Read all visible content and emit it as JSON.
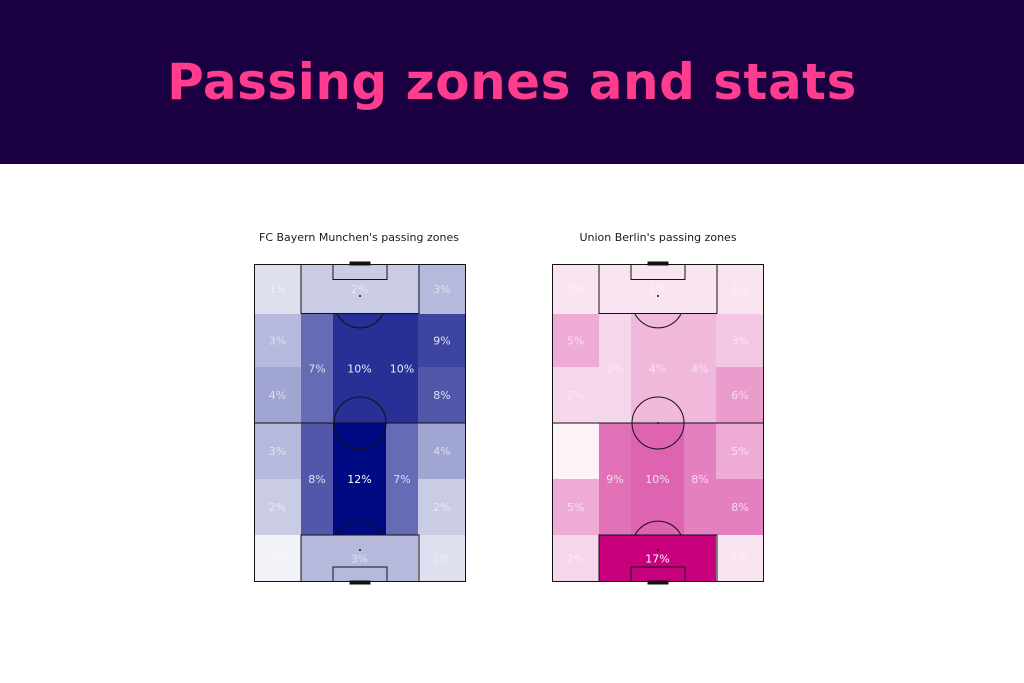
{
  "header": {
    "title": "Passing zones and stats",
    "background": "#1a0040",
    "title_color": "#ff3c8e"
  },
  "chart_data": [
    {
      "type": "heatmap",
      "title": "FC Bayern Munchen's passing zones",
      "color": "#000a82",
      "unit": "%",
      "columns": 5,
      "rows": 6,
      "max_value": 12,
      "zones": [
        {
          "row": 0,
          "col": 0,
          "colspan": 1,
          "rowspan": 1,
          "value": 1
        },
        {
          "row": 0,
          "col": 1,
          "colspan": 3,
          "rowspan": 1,
          "value": 2
        },
        {
          "row": 0,
          "col": 4,
          "colspan": 1,
          "rowspan": 1,
          "value": 3
        },
        {
          "row": 1,
          "col": 0,
          "colspan": 1,
          "rowspan": 1,
          "value": 3
        },
        {
          "row": 1,
          "col": 1,
          "colspan": 1,
          "rowspan": 2,
          "value": 7
        },
        {
          "row": 1,
          "col": 2,
          "colspan": 1,
          "rowspan": 2,
          "value": 10
        },
        {
          "row": 1,
          "col": 3,
          "colspan": 1,
          "rowspan": 2,
          "value": 10
        },
        {
          "row": 1,
          "col": 4,
          "colspan": 1,
          "rowspan": 1,
          "value": 9
        },
        {
          "row": 2,
          "col": 0,
          "colspan": 1,
          "rowspan": 1,
          "value": 4
        },
        {
          "row": 2,
          "col": 4,
          "colspan": 1,
          "rowspan": 1,
          "value": 8
        },
        {
          "row": 3,
          "col": 0,
          "colspan": 1,
          "rowspan": 1,
          "value": 3
        },
        {
          "row": 3,
          "col": 1,
          "colspan": 1,
          "rowspan": 2,
          "value": 8
        },
        {
          "row": 3,
          "col": 2,
          "colspan": 1,
          "rowspan": 2,
          "value": 12
        },
        {
          "row": 3,
          "col": 3,
          "colspan": 1,
          "rowspan": 2,
          "value": 7
        },
        {
          "row": 3,
          "col": 4,
          "colspan": 1,
          "rowspan": 1,
          "value": 4
        },
        {
          "row": 4,
          "col": 0,
          "colspan": 1,
          "rowspan": 1,
          "value": 2
        },
        {
          "row": 4,
          "col": 4,
          "colspan": 1,
          "rowspan": 1,
          "value": 2
        },
        {
          "row": 5,
          "col": 0,
          "colspan": 1,
          "rowspan": 1,
          "value": 0
        },
        {
          "row": 5,
          "col": 1,
          "colspan": 3,
          "rowspan": 1,
          "value": 3
        },
        {
          "row": 5,
          "col": 4,
          "colspan": 1,
          "rowspan": 1,
          "value": 1
        }
      ]
    },
    {
      "type": "heatmap",
      "title": "Union Berlin's passing zones",
      "color": "#c8007e",
      "unit": "%",
      "columns": 5,
      "rows": 6,
      "max_value": 17,
      "zones": [
        {
          "row": 0,
          "col": 0,
          "colspan": 1,
          "rowspan": 1,
          "value": 1
        },
        {
          "row": 0,
          "col": 1,
          "colspan": 3,
          "rowspan": 1,
          "value": 1
        },
        {
          "row": 0,
          "col": 4,
          "colspan": 1,
          "rowspan": 1,
          "value": 1
        },
        {
          "row": 1,
          "col": 0,
          "colspan": 1,
          "rowspan": 1,
          "value": 5
        },
        {
          "row": 1,
          "col": 1,
          "colspan": 1,
          "rowspan": 2,
          "value": 2
        },
        {
          "row": 1,
          "col": 2,
          "colspan": 1,
          "rowspan": 2,
          "value": 4
        },
        {
          "row": 1,
          "col": 3,
          "colspan": 1,
          "rowspan": 2,
          "value": 4
        },
        {
          "row": 1,
          "col": 4,
          "colspan": 1,
          "rowspan": 1,
          "value": 3
        },
        {
          "row": 2,
          "col": 0,
          "colspan": 1,
          "rowspan": 1,
          "value": 2
        },
        {
          "row": 2,
          "col": 4,
          "colspan": 1,
          "rowspan": 1,
          "value": 6
        },
        {
          "row": 3,
          "col": 0,
          "colspan": 1,
          "rowspan": 1,
          "value": 0
        },
        {
          "row": 3,
          "col": 1,
          "colspan": 1,
          "rowspan": 2,
          "value": 9
        },
        {
          "row": 3,
          "col": 2,
          "colspan": 1,
          "rowspan": 2,
          "value": 10
        },
        {
          "row": 3,
          "col": 3,
          "colspan": 1,
          "rowspan": 2,
          "value": 8
        },
        {
          "row": 3,
          "col": 4,
          "colspan": 1,
          "rowspan": 1,
          "value": 5
        },
        {
          "row": 4,
          "col": 0,
          "colspan": 1,
          "rowspan": 1,
          "value": 5
        },
        {
          "row": 4,
          "col": 4,
          "colspan": 1,
          "rowspan": 1,
          "value": 8
        },
        {
          "row": 5,
          "col": 0,
          "colspan": 1,
          "rowspan": 1,
          "value": 2
        },
        {
          "row": 5,
          "col": 1,
          "colspan": 3,
          "rowspan": 1,
          "value": 17
        },
        {
          "row": 5,
          "col": 4,
          "colspan": 1,
          "rowspan": 1,
          "value": 1
        }
      ]
    }
  ]
}
